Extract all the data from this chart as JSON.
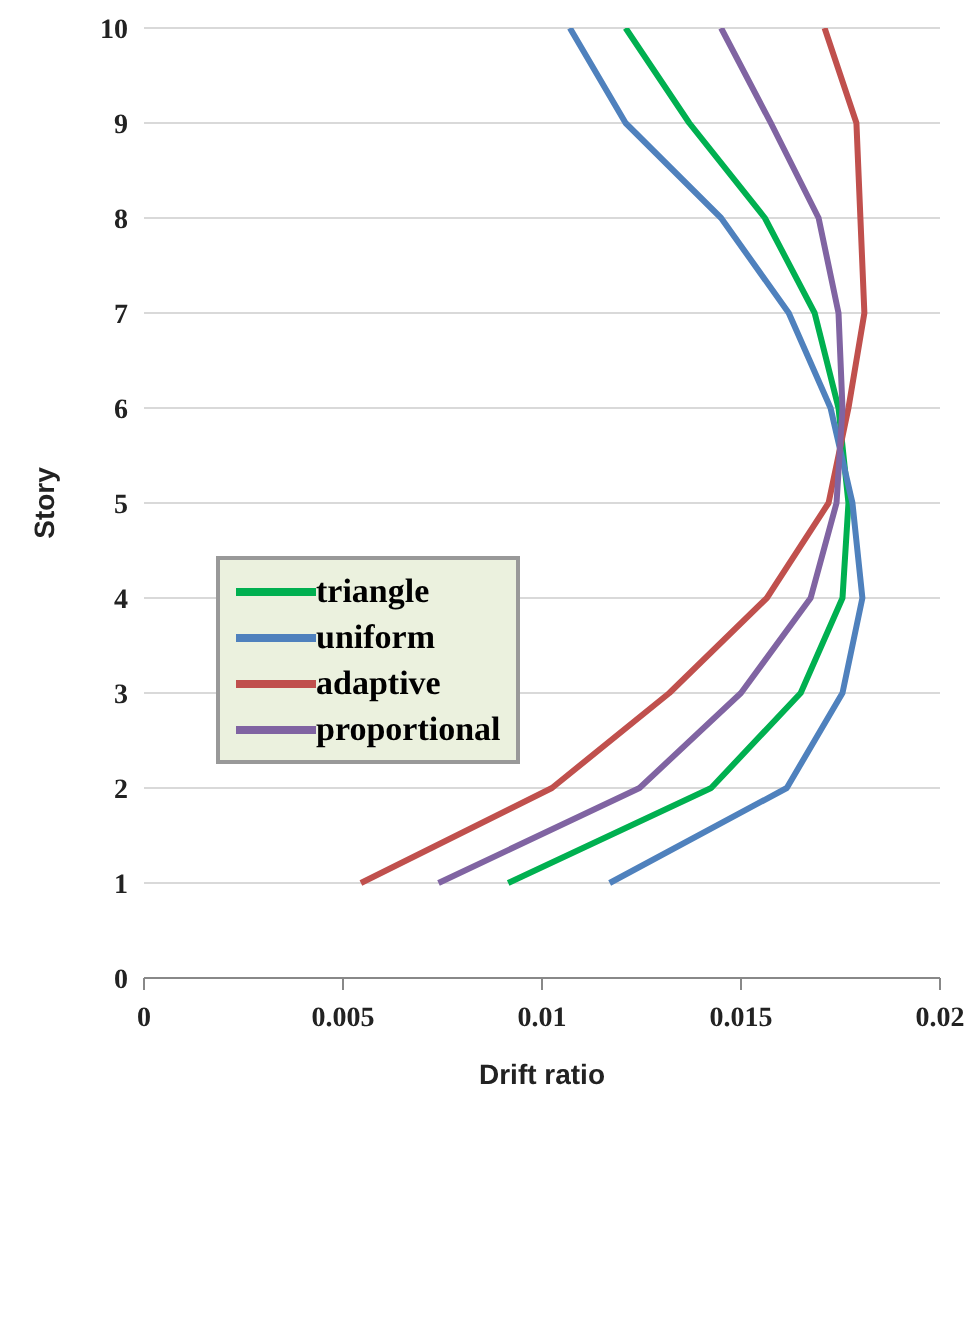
{
  "chart_data": {
    "type": "line",
    "xlabel": "Drift ratio",
    "ylabel": "Story",
    "xlim": [
      0,
      0.02
    ],
    "xticks": [
      0,
      0.005,
      0.01,
      0.015,
      0.02
    ],
    "ylim": [
      0,
      10
    ],
    "yticks": [
      0,
      1,
      2,
      3,
      4,
      5,
      6,
      7,
      8,
      9,
      10
    ],
    "grid": "y",
    "legend": "left",
    "marker": "none",
    "line_style": "solid",
    "series": [
      {
        "name": "triangle",
        "color": "#00b050",
        "x": [
          0.00915,
          0.01425,
          0.0165,
          0.01755,
          0.0177,
          0.01745,
          0.01685,
          0.0156,
          0.0137,
          0.0121
        ],
        "values": [
          1,
          2,
          3,
          4,
          5,
          6,
          7,
          8,
          9,
          10
        ]
      },
      {
        "name": "uniform",
        "color": "#4f81bd",
        "x": [
          0.0117,
          0.01615,
          0.01755,
          0.01805,
          0.0178,
          0.01725,
          0.0162,
          0.0145,
          0.0121,
          0.0107
        ],
        "values": [
          1,
          2,
          3,
          4,
          5,
          6,
          7,
          8,
          9,
          10
        ]
      },
      {
        "name": "adaptive",
        "color": "#c0504d",
        "x": [
          0.00545,
          0.01025,
          0.0132,
          0.01565,
          0.0172,
          0.0177,
          0.0181,
          0.018,
          0.0179,
          0.0171
        ],
        "values": [
          1,
          2,
          3,
          4,
          5,
          6,
          7,
          8,
          9,
          10
        ]
      },
      {
        "name": "proportional",
        "color": "#8064a2",
        "x": [
          0.0074,
          0.01245,
          0.015,
          0.01675,
          0.0174,
          0.01755,
          0.01745,
          0.01695,
          0.01575,
          0.0145
        ],
        "values": [
          1,
          2,
          3,
          4,
          5,
          6,
          7,
          8,
          9,
          10
        ]
      }
    ]
  }
}
